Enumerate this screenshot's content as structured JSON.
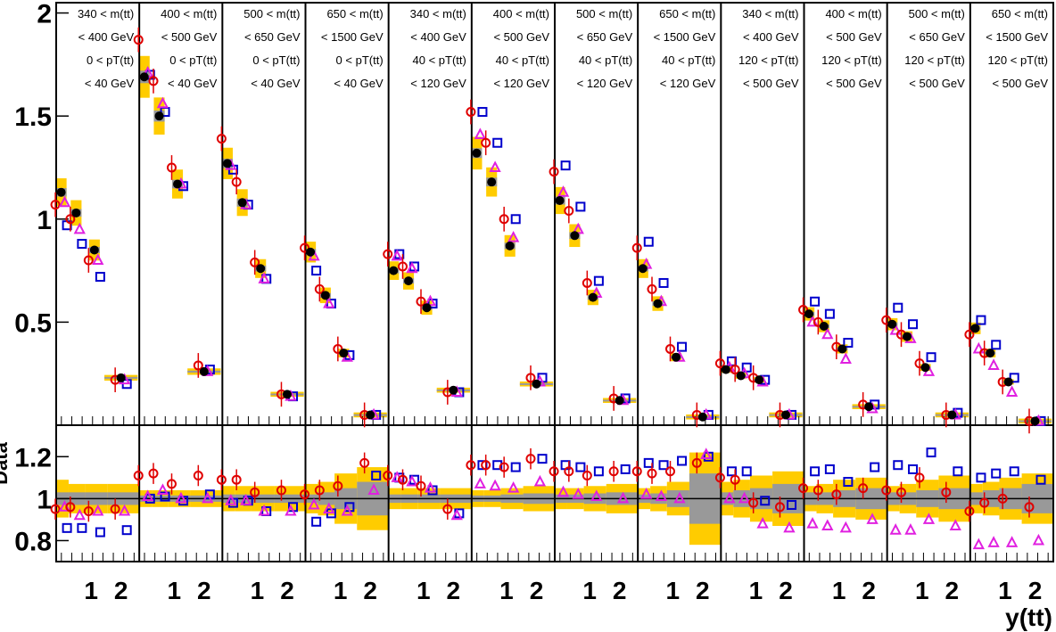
{
  "chart_data": {
    "type": "scatter",
    "xlabel": "y(tt)",
    "ylabel_ratio": "Data",
    "ylim": [
      0,
      2.05
    ],
    "ratio_ylim": [
      0.7,
      1.35
    ],
    "x_ticks": [
      "1",
      "2"
    ],
    "y_ticks": [
      "0.5",
      "1",
      "1.5",
      "2"
    ],
    "ratio_y_ticks": [
      "0.8",
      "1",
      "1.2"
    ],
    "colors": {
      "data": "#000000",
      "band_total": "#ffcc00",
      "band_stat": "#999999",
      "circle": "#e00000",
      "square": "#0000cc",
      "triangle": "#e020e0",
      "line": "#000000"
    },
    "bins": [
      {
        "h": [
          "340 < m(tt)",
          "< 400 GeV",
          "0 < pT(tt)",
          "< 40 GeV"
        ],
        "data": [
          1.13,
          1.03,
          0.85,
          0.23
        ],
        "circle": [
          1.07,
          1.0,
          0.8,
          0.22
        ],
        "square": [
          0.97,
          0.88,
          0.72,
          0.2
        ],
        "tri": [
          1.08,
          0.95,
          0.8,
          0.22
        ],
        "circle_ratio": [
          0.95,
          0.96,
          0.94,
          0.95
        ],
        "square_ratio": [
          0.86,
          0.86,
          0.84,
          0.85
        ],
        "tri_ratio": [
          0.96,
          0.92,
          0.94,
          0.94
        ],
        "band_total": [
          0.09,
          0.07,
          0.07,
          0.07
        ],
        "band_stat": [
          0.03,
          0.03,
          0.03,
          0.03
        ]
      },
      {
        "h": [
          "400 < m(tt)",
          "< 500 GeV",
          "0 < pT(tt)",
          "< 40 GeV"
        ],
        "data": [
          1.69,
          1.5,
          1.17,
          0.26
        ],
        "circle": [
          1.87,
          1.67,
          1.25,
          0.29
        ],
        "square": [
          1.7,
          1.52,
          1.16,
          0.27
        ],
        "tri": [
          1.71,
          1.56,
          1.17,
          0.26
        ],
        "circle_ratio": [
          1.11,
          1.12,
          1.07,
          1.11
        ],
        "square_ratio": [
          1.0,
          1.01,
          0.99,
          1.02
        ],
        "tri_ratio": [
          1.01,
          1.04,
          1.0,
          1.0
        ],
        "band_total": [
          0.04,
          0.04,
          0.04,
          0.04
        ],
        "band_stat": [
          0.015,
          0.015,
          0.015,
          0.015
        ]
      },
      {
        "h": [
          "500 < m(tt)",
          "< 650 GeV",
          "0 < pT(tt)",
          "< 40 GeV"
        ],
        "data": [
          1.27,
          1.08,
          0.76,
          0.15
        ],
        "circle": [
          1.39,
          1.18,
          0.79,
          0.15
        ],
        "square": [
          1.24,
          1.07,
          0.71,
          0.14
        ],
        "tri": [
          1.26,
          1.07,
          0.71,
          0.14
        ],
        "circle_ratio": [
          1.09,
          1.09,
          1.03,
          1.04
        ],
        "square_ratio": [
          0.98,
          0.99,
          0.94,
          0.96
        ],
        "tri_ratio": [
          0.99,
          0.99,
          0.94,
          0.94
        ],
        "band_total": [
          0.06,
          0.06,
          0.06,
          0.06
        ],
        "band_stat": [
          0.02,
          0.02,
          0.02,
          0.02
        ]
      },
      {
        "h": [
          "650 < m(tt)",
          "< 1500 GeV",
          "0 < pT(tt)",
          "< 40 GeV"
        ],
        "data": [
          0.84,
          0.63,
          0.35,
          0.05
        ],
        "circle": [
          0.86,
          0.66,
          0.37,
          0.05
        ],
        "square": [
          0.75,
          0.59,
          0.34,
          0.05
        ],
        "tri": [
          0.82,
          0.59,
          0.33,
          0.05
        ],
        "circle_ratio": [
          1.02,
          1.04,
          1.06,
          1.17
        ],
        "square_ratio": [
          0.89,
          0.93,
          0.96,
          1.11
        ],
        "tri_ratio": [
          0.97,
          0.95,
          0.94,
          1.04
        ],
        "band_total": [
          0.07,
          0.08,
          0.12,
          0.15
        ],
        "band_stat": [
          0.02,
          0.03,
          0.05,
          0.08
        ]
      },
      {
        "h": [
          "340 < m(tt)",
          "< 400 GeV",
          "40 < pT(tt)",
          "< 120 GeV"
        ],
        "data": [
          0.75,
          0.7,
          0.57,
          0.17
        ],
        "circle": [
          0.83,
          0.77,
          0.6,
          0.16
        ],
        "square": [
          0.83,
          0.77,
          0.59,
          0.16
        ],
        "tri": [
          0.82,
          0.76,
          0.6,
          0.16
        ],
        "circle_ratio": [
          1.11,
          1.09,
          1.06,
          0.95
        ],
        "square_ratio": [
          1.1,
          1.09,
          1.04,
          0.93
        ],
        "tri_ratio": [
          1.1,
          1.08,
          1.05,
          0.92
        ],
        "band_total": [
          0.05,
          0.05,
          0.05,
          0.05
        ],
        "band_stat": [
          0.02,
          0.02,
          0.02,
          0.02
        ]
      },
      {
        "h": [
          "400 < m(tt)",
          "< 500 GeV",
          "40 < pT(tt)",
          "< 120 GeV"
        ],
        "data": [
          1.32,
          1.18,
          0.87,
          0.2
        ],
        "circle": [
          1.52,
          1.37,
          1.0,
          0.23
        ],
        "square": [
          1.52,
          1.37,
          1.0,
          0.23
        ],
        "tri": [
          1.41,
          1.25,
          0.91,
          0.21
        ],
        "circle_ratio": [
          1.16,
          1.16,
          1.15,
          1.19
        ],
        "square_ratio": [
          1.16,
          1.16,
          1.15,
          1.19
        ],
        "tri_ratio": [
          1.07,
          1.06,
          1.05,
          1.08
        ],
        "band_total": [
          0.04,
          0.04,
          0.05,
          0.06
        ],
        "band_stat": [
          0.015,
          0.015,
          0.02,
          0.025
        ]
      },
      {
        "h": [
          "500 < m(tt)",
          "< 650 GeV",
          "40 < pT(tt)",
          "< 120 GeV"
        ],
        "data": [
          1.09,
          0.92,
          0.62,
          0.12
        ],
        "circle": [
          1.23,
          1.04,
          0.69,
          0.13
        ],
        "square": [
          1.26,
          1.06,
          0.7,
          0.13
        ],
        "tri": [
          1.13,
          0.95,
          0.64,
          0.12
        ],
        "circle_ratio": [
          1.13,
          1.13,
          1.11,
          1.13
        ],
        "square_ratio": [
          1.16,
          1.15,
          1.13,
          1.14
        ],
        "tri_ratio": [
          1.03,
          1.02,
          1.01,
          1.0
        ],
        "band_total": [
          0.05,
          0.05,
          0.06,
          0.07
        ],
        "band_stat": [
          0.02,
          0.02,
          0.025,
          0.03
        ]
      },
      {
        "h": [
          "650 < m(tt)",
          "< 1500 GeV",
          "40 < pT(tt)",
          "< 120 GeV"
        ],
        "data": [
          0.76,
          0.59,
          0.33,
          0.04
        ],
        "circle": [
          0.86,
          0.66,
          0.37,
          0.05
        ],
        "square": [
          0.89,
          0.69,
          0.38,
          0.05
        ],
        "tri": [
          0.78,
          0.6,
          0.33,
          0.05
        ],
        "circle_ratio": [
          1.13,
          1.12,
          1.13,
          1.17
        ],
        "square_ratio": [
          1.17,
          1.16,
          1.18,
          1.2
        ],
        "tri_ratio": [
          1.02,
          1.01,
          1.0,
          1.21
        ],
        "band_total": [
          0.05,
          0.06,
          0.08,
          0.22
        ],
        "band_stat": [
          0.02,
          0.025,
          0.04,
          0.12
        ]
      },
      {
        "h": [
          "340 < m(tt)",
          "< 400 GeV",
          "120 < pT(tt)",
          "< 500 GeV"
        ],
        "data": [
          0.27,
          0.24,
          0.22,
          0.05
        ],
        "circle": [
          0.3,
          0.27,
          0.23,
          0.05
        ],
        "square": [
          0.31,
          0.28,
          0.22,
          0.05
        ],
        "tri": [
          0.28,
          0.25,
          0.21,
          0.05
        ],
        "circle_ratio": [
          1.1,
          1.09,
          0.98,
          0.96
        ],
        "square_ratio": [
          1.13,
          1.13,
          0.99,
          0.97
        ],
        "tri_ratio": [
          1.0,
          1.0,
          0.88,
          0.86
        ],
        "band_total": [
          0.08,
          0.09,
          0.11,
          0.13
        ],
        "band_stat": [
          0.03,
          0.04,
          0.05,
          0.07
        ]
      },
      {
        "h": [
          "400 < m(tt)",
          "< 500 GeV",
          "120 < pT(tt)",
          "< 500 GeV"
        ],
        "data": [
          0.54,
          0.48,
          0.37,
          0.09
        ],
        "circle": [
          0.56,
          0.5,
          0.38,
          0.1
        ],
        "square": [
          0.6,
          0.54,
          0.4,
          0.1
        ],
        "tri": [
          0.5,
          0.44,
          0.32,
          0.08
        ],
        "circle_ratio": [
          1.05,
          1.04,
          1.02,
          1.05
        ],
        "square_ratio": [
          1.13,
          1.14,
          1.08,
          1.15
        ],
        "tri_ratio": [
          0.88,
          0.87,
          0.86,
          0.9
        ],
        "band_total": [
          0.06,
          0.07,
          0.09,
          0.1
        ],
        "band_stat": [
          0.03,
          0.03,
          0.04,
          0.05
        ]
      },
      {
        "h": [
          "500 < m(tt)",
          "< 650 GeV",
          "120 < pT(tt)",
          "< 500 GeV"
        ],
        "data": [
          0.49,
          0.43,
          0.28,
          0.05
        ],
        "circle": [
          0.51,
          0.44,
          0.3,
          0.05
        ],
        "square": [
          0.57,
          0.49,
          0.33,
          0.06
        ],
        "tri": [
          0.46,
          0.42,
          0.26,
          0.05
        ],
        "circle_ratio": [
          1.04,
          1.03,
          1.1,
          1.03
        ],
        "square_ratio": [
          1.16,
          1.14,
          1.22,
          1.13
        ],
        "tri_ratio": [
          0.85,
          0.85,
          0.9,
          0.87
        ],
        "band_total": [
          0.06,
          0.07,
          0.09,
          0.11
        ],
        "band_stat": [
          0.03,
          0.03,
          0.04,
          0.05
        ]
      },
      {
        "h": [
          "650 < m(tt)",
          "< 1500 GeV",
          "120 < pT(tt)",
          "< 500 GeV"
        ],
        "data": [
          0.47,
          0.35,
          0.21,
          0.02
        ],
        "circle": [
          0.44,
          0.35,
          0.21,
          0.02
        ],
        "square": [
          0.51,
          0.39,
          0.23,
          0.02
        ],
        "tri": [
          0.37,
          0.29,
          0.16,
          0.02
        ],
        "circle_ratio": [
          0.94,
          0.98,
          1.0,
          0.96
        ],
        "square_ratio": [
          1.1,
          1.12,
          1.13,
          1.09
        ],
        "tri_ratio": [
          0.78,
          0.79,
          0.79,
          0.8
        ],
        "band_total": [
          0.07,
          0.08,
          0.1,
          0.12
        ],
        "band_stat": [
          0.03,
          0.04,
          0.05,
          0.07
        ]
      }
    ]
  }
}
